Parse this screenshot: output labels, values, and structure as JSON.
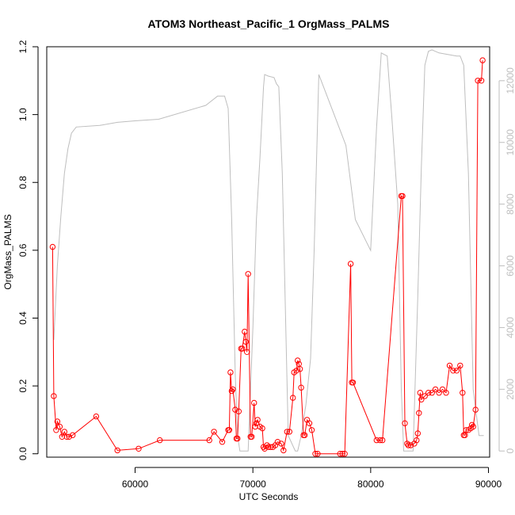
{
  "chart_data": {
    "type": "line",
    "title": "ATOM3 Northeast_Pacific_1 OrgMass_PALMS",
    "xlabel": "UTC Seconds",
    "ylabel": "OrgMass_PALMS",
    "xlim": [
      52500,
      90100
    ],
    "ylim": [
      -0.01,
      1.2
    ],
    "y2lim": [
      -200,
      13100
    ],
    "xticks": [
      60000,
      70000,
      80000,
      90000
    ],
    "yticks": [
      0.0,
      0.2,
      0.4,
      0.6,
      0.8,
      1.0,
      1.2
    ],
    "y2ticks": [
      0,
      2000,
      4000,
      6000,
      8000,
      10000,
      12000
    ],
    "grid": false,
    "colors": {
      "primary": "#ff0000",
      "secondary": "#bebebe",
      "axis": "#000000"
    },
    "series": [
      {
        "axis": "left",
        "marker": "open-circle",
        "x": [
          53000,
          53100,
          53300,
          53400,
          53600,
          53800,
          54000,
          54200,
          54400,
          54700,
          56700,
          58500,
          60300,
          62100,
          66300,
          66700,
          67400,
          67900,
          68000,
          68100,
          68200,
          68300,
          68500,
          68600,
          68700,
          68800,
          69000,
          69100,
          69300,
          69400,
          69500,
          69600,
          69800,
          69900,
          70100,
          70200,
          70300,
          70400,
          70600,
          70800,
          70900,
          71000,
          71200,
          71300,
          71500,
          71700,
          71900,
          72100,
          72400,
          72600,
          72900,
          73100,
          73400,
          73500,
          73700,
          73800,
          73900,
          74000,
          74100,
          74300,
          74400,
          74600,
          74800,
          75000,
          75300,
          75500,
          77400,
          77600,
          77800,
          78300,
          78400,
          78500,
          80500,
          80800,
          81000,
          82600,
          82700,
          82900,
          83100,
          83200,
          83400,
          83700,
          83900,
          84000,
          84100,
          84200,
          84300,
          84600,
          84900,
          85200,
          85500,
          85800,
          86100,
          86400,
          86700,
          87000,
          87300,
          87600,
          87800,
          87900,
          88000,
          88100,
          88300,
          88500,
          88600,
          88700,
          88900,
          89100,
          89400,
          89500
        ],
        "y": [
          0.61,
          0.17,
          0.07,
          0.095,
          0.08,
          0.05,
          0.065,
          0.05,
          0.05,
          0.055,
          0.11,
          0.01,
          0.015,
          0.04,
          0.04,
          0.065,
          0.035,
          0.07,
          0.07,
          0.24,
          0.185,
          0.19,
          0.13,
          0.045,
          0.045,
          0.125,
          0.31,
          0.31,
          0.36,
          0.33,
          0.3,
          0.53,
          0.05,
          0.05,
          0.15,
          0.08,
          0.09,
          0.1,
          0.08,
          0.075,
          0.02,
          0.015,
          0.025,
          0.02,
          0.02,
          0.02,
          0.025,
          0.035,
          0.03,
          0.01,
          0.065,
          0.065,
          0.165,
          0.24,
          0.245,
          0.275,
          0.265,
          0.25,
          0.195,
          0.055,
          0.055,
          0.1,
          0.09,
          0.07,
          0.0,
          0.0,
          0.0,
          0.0,
          0.0,
          0.56,
          0.21,
          0.21,
          0.04,
          0.04,
          0.04,
          0.76,
          0.76,
          0.09,
          0.03,
          0.025,
          0.025,
          0.03,
          0.04,
          0.06,
          0.12,
          0.18,
          0.16,
          0.17,
          0.18,
          0.18,
          0.19,
          0.18,
          0.19,
          0.18,
          0.26,
          0.245,
          0.245,
          0.26,
          0.18,
          0.055,
          0.055,
          0.07,
          0.07,
          0.075,
          0.085,
          0.08,
          0.13,
          1.1,
          1.1,
          1.16
        ]
      },
      {
        "axis": "right",
        "marker": "none",
        "x": [
          53100,
          53400,
          53700,
          54000,
          54300,
          54600,
          55000,
          57000,
          58500,
          60000,
          62000,
          66000,
          67000,
          67600,
          67900,
          68200,
          68500,
          68700,
          68900,
          69000,
          69300,
          69600,
          70000,
          70300,
          70600,
          70900,
          71000,
          71300,
          71800,
          72000,
          72200,
          72500,
          73000,
          73600,
          73800,
          74100,
          74500,
          74900,
          75200,
          75600,
          77600,
          77900,
          78200,
          78700,
          80000,
          80500,
          80900,
          81400,
          81800,
          82300,
          82600,
          82800,
          83100,
          83600,
          84000,
          84300,
          84600,
          84900,
          85200,
          85800,
          87300,
          87600,
          87900,
          88300,
          88700,
          89200,
          89600
        ],
        "y": [
          3600,
          6000,
          7600,
          9000,
          9800,
          10300,
          10500,
          10550,
          10650,
          10700,
          10750,
          11200,
          11500,
          11500,
          11100,
          7500,
          2500,
          500,
          0,
          0,
          0,
          0,
          4000,
          7500,
          9500,
          11800,
          12200,
          12150,
          12100,
          11900,
          11800,
          9000,
          500,
          0,
          0,
          500,
          1500,
          3000,
          6500,
          12200,
          10200,
          9900,
          9000,
          7500,
          6500,
          10500,
          12900,
          12800,
          10800,
          8000,
          2000,
          0,
          0,
          0,
          5000,
          9200,
          12500,
          12950,
          13000,
          12900,
          12800,
          12800,
          12500,
          9000,
          2000,
          500,
          500
        ]
      }
    ]
  }
}
